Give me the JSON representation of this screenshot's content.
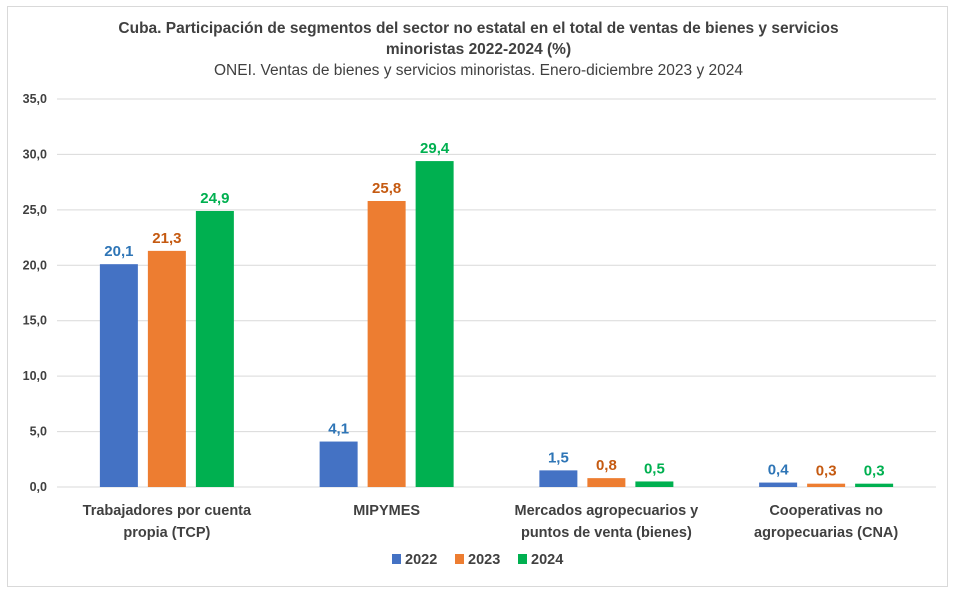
{
  "chart_data": {
    "type": "bar",
    "title_line1": "Cuba. Participación de segmentos del sector no estatal en el total de ventas de bienes y servicios",
    "title_line2": "minoristas 2022-2024 (%)",
    "subtitle": "ONEI. Ventas de bienes y servicios minoristas. Enero-diciembre 2023 y 2024",
    "xlabel": "",
    "ylabel": "",
    "ylim": [
      0,
      35
    ],
    "yticks": [
      0,
      5,
      10,
      15,
      20,
      25,
      30,
      35
    ],
    "ytick_labels": [
      "0,0",
      "5,0",
      "10,0",
      "15,0",
      "20,0",
      "25,0",
      "30,0",
      "35,0"
    ],
    "grid": true,
    "legend_position": "bottom",
    "categories": [
      [
        "Trabajadores por cuenta",
        "propia (TCP)"
      ],
      [
        "MIPYMES"
      ],
      [
        "Mercados agropecuarios y",
        "puntos de venta (bienes)"
      ],
      [
        "Cooperativas no",
        "agropecuarias (CNA)"
      ]
    ],
    "series": [
      {
        "name": "2022",
        "color": "#4472c4",
        "label_color": "#2e75b6",
        "values": [
          20.1,
          4.1,
          1.5,
          0.4
        ],
        "labels": [
          "20,1",
          "4,1",
          "1,5",
          "0,4"
        ]
      },
      {
        "name": "2023",
        "color": "#ed7d31",
        "label_color": "#c55a11",
        "values": [
          21.3,
          25.8,
          0.8,
          0.3
        ],
        "labels": [
          "21,3",
          "25,8",
          "0,8",
          "0,3"
        ]
      },
      {
        "name": "2024",
        "color": "#00b050",
        "label_color": "#00b050",
        "values": [
          24.9,
          29.4,
          0.5,
          0.3
        ],
        "labels": [
          "24,9",
          "29,4",
          "0,5",
          "0,3"
        ]
      }
    ]
  }
}
